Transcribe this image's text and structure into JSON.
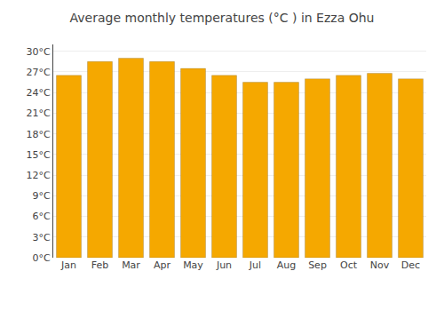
{
  "chart_data": {
    "type": "bar",
    "title": "Average monthly temperatures (°C ) in Ezza Ohu",
    "categories": [
      "Jan",
      "Feb",
      "Mar",
      "Apr",
      "May",
      "Jun",
      "Jul",
      "Aug",
      "Sep",
      "Oct",
      "Nov",
      "Dec"
    ],
    "values": [
      26.5,
      28.5,
      29.0,
      28.5,
      27.5,
      26.5,
      25.5,
      25.5,
      26.0,
      26.5,
      26.8,
      26.0
    ],
    "color": "#F5A800",
    "ylim": [
      0,
      31
    ],
    "yticks": [
      {
        "value": 0,
        "label": "0°C"
      },
      {
        "value": 3,
        "label": "3°C"
      },
      {
        "value": 6,
        "label": "6°C"
      },
      {
        "value": 9,
        "label": "9°C"
      },
      {
        "value": 12,
        "label": "12°C"
      },
      {
        "value": 15,
        "label": "15°C"
      },
      {
        "value": 18,
        "label": "18°C"
      },
      {
        "value": 21,
        "label": "21°C"
      },
      {
        "value": 24,
        "label": "24°C"
      },
      {
        "value": 27,
        "label": "27°C"
      },
      {
        "value": 30,
        "label": "30°C"
      }
    ],
    "grid": true
  }
}
